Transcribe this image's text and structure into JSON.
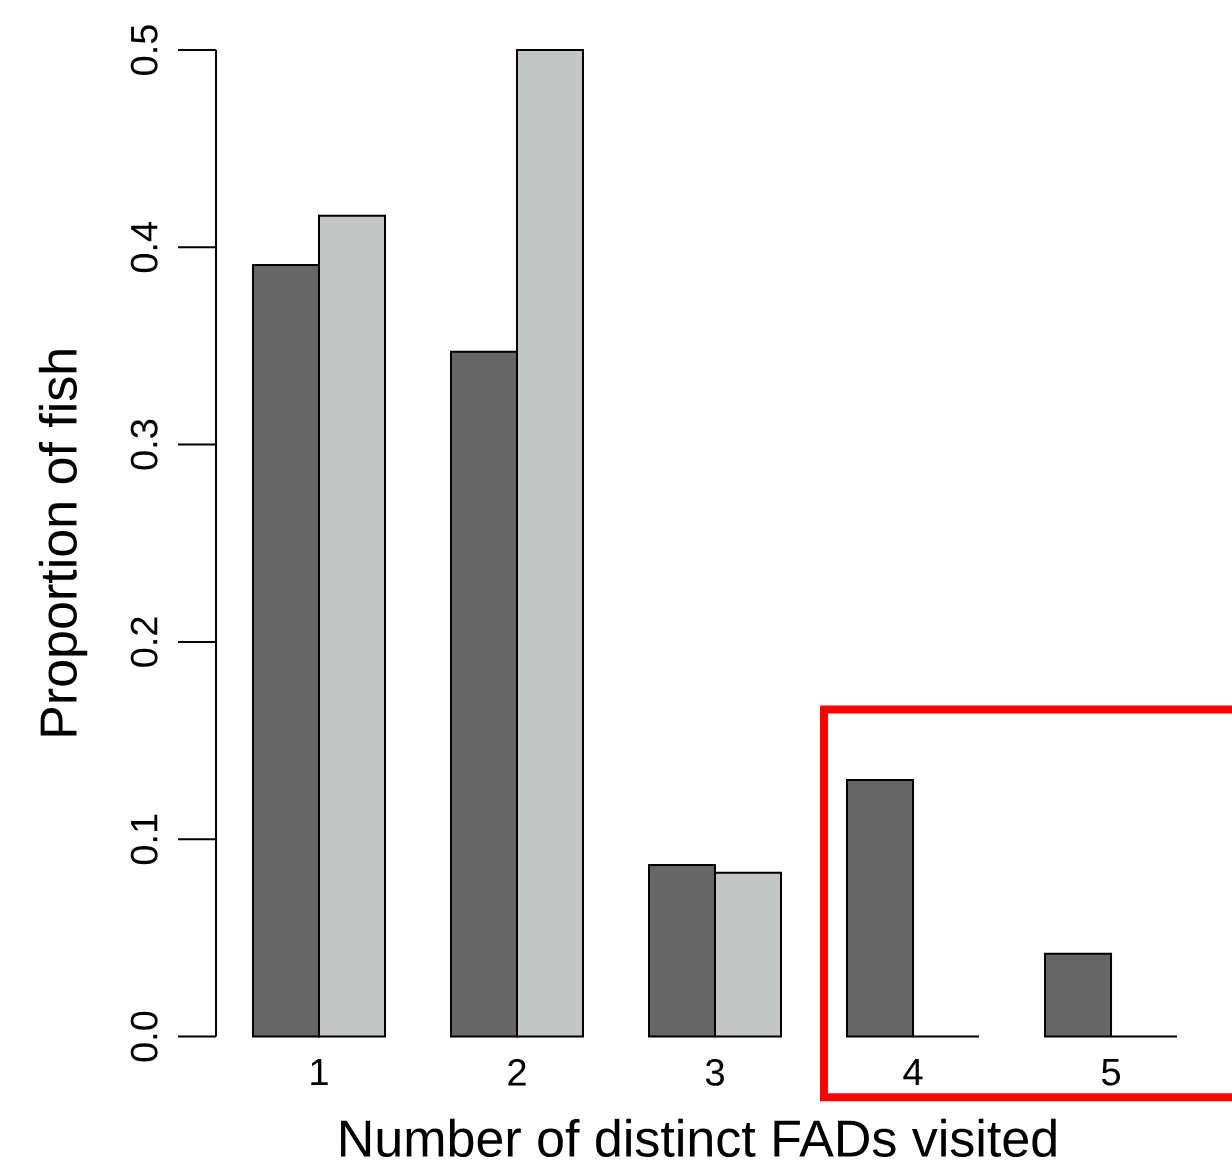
{
  "chart_data": {
    "type": "bar",
    "xlabel": "Number of distinct FADs visited",
    "ylabel": "Proportion of fish",
    "categories": [
      "1",
      "2",
      "3",
      "4",
      "5"
    ],
    "series": [
      {
        "color": "#666666",
        "values": [
          0.391,
          0.347,
          0.087,
          0.13,
          0.042
        ]
      },
      {
        "colors": [
          "#c4c6c5",
          "#c4c6c5",
          "#c4c6c5",
          "#000000",
          "#000000"
        ],
        "values": [
          0.416,
          0.5,
          0.083,
          0,
          0
        ]
      }
    ],
    "ylim": [
      0,
      0.5
    ],
    "yticks": [
      {
        "value": 0,
        "label": "0.0"
      },
      0.1,
      0.2,
      0.3,
      0.4,
      0.5
    ]
  }
}
